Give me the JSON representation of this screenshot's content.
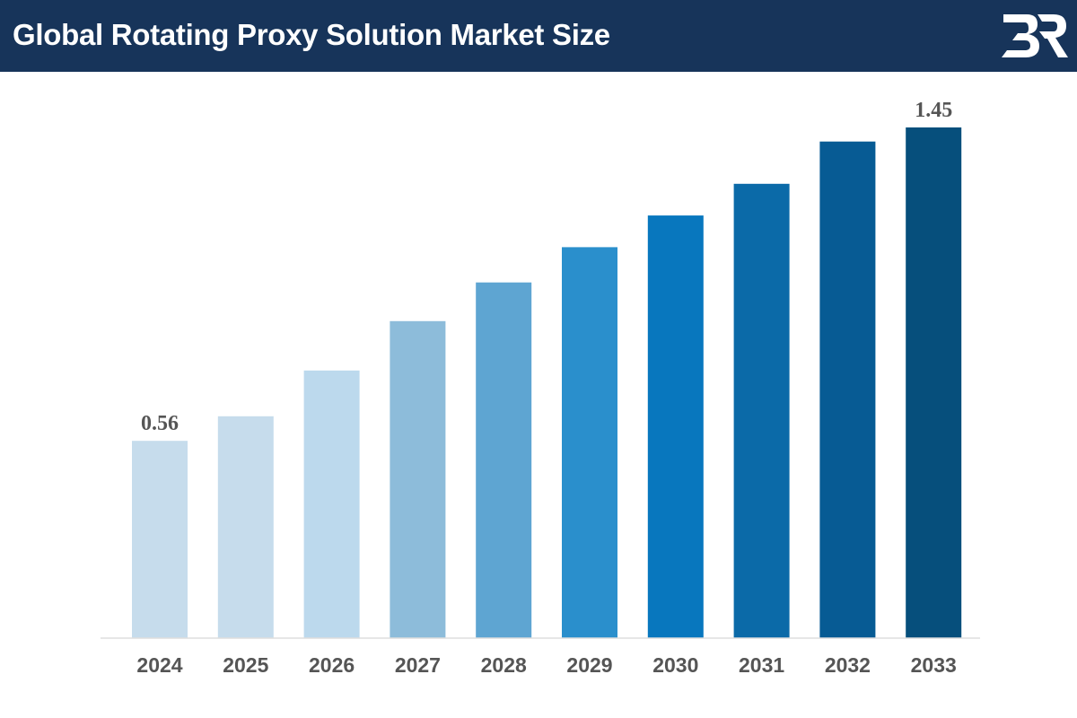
{
  "header": {
    "title": "Global Rotating Proxy Solution Market Size",
    "background": "#17345a"
  },
  "logo": {
    "icon": "br-logo-icon",
    "color": "#ffffff"
  },
  "chart_data": {
    "type": "bar",
    "title": "Global Rotating Proxy Solution Market Size",
    "xlabel": "",
    "ylabel": "",
    "categories": [
      "2024",
      "2025",
      "2026",
      "2027",
      "2028",
      "2029",
      "2030",
      "2031",
      "2032",
      "2033"
    ],
    "values": [
      0.56,
      0.63,
      0.76,
      0.9,
      1.01,
      1.11,
      1.2,
      1.29,
      1.41,
      1.45
    ],
    "data_labels": {
      "0": "0.56",
      "9": "1.45"
    },
    "colors": [
      "#c6dcec",
      "#c6dcec",
      "#bcd9ed",
      "#8dbcda",
      "#5ea5d2",
      "#2a8fcc",
      "#0877be",
      "#0b6aa8",
      "#075b94",
      "#064f7c"
    ],
    "ylim": [
      0,
      1.45
    ],
    "grid": false,
    "legend": "none"
  }
}
